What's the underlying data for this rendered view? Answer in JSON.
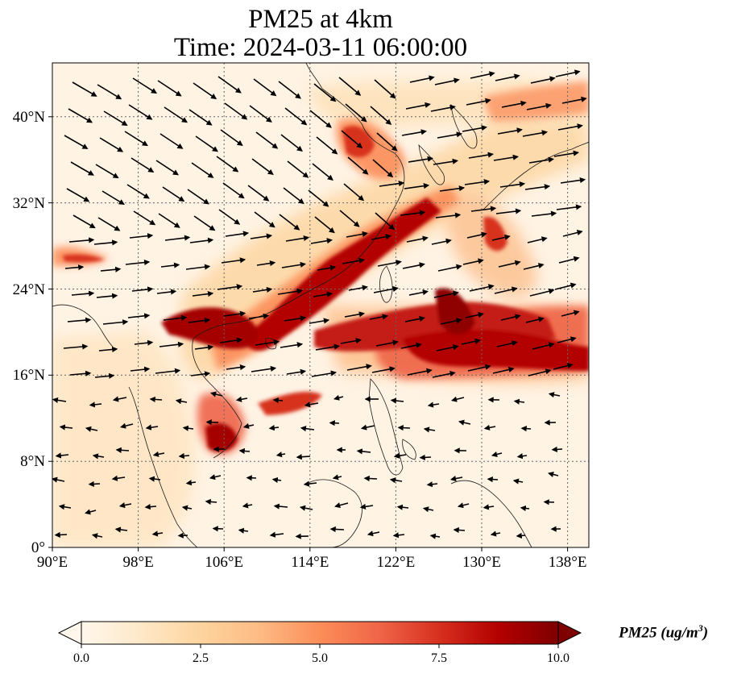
{
  "title": {
    "line1": "PM25 at 4km",
    "line2": "Time: 2024-03-11 06:00:00"
  },
  "map": {
    "lon_range": [
      90,
      140
    ],
    "lat_range": [
      0,
      45
    ],
    "x_ticks": [
      "90°E",
      "98°E",
      "106°E",
      "114°E",
      "122°E",
      "130°E",
      "138°E"
    ],
    "y_ticks": [
      "0°",
      "8°N",
      "16°N",
      "24°N",
      "32°N",
      "40°N"
    ],
    "gridlines": true,
    "coastlines": true,
    "wind_vectors": true
  },
  "colorbar": {
    "colormap": "OrRd",
    "colors": [
      "#fff7ec",
      "#fee8c8",
      "#fdd49e",
      "#fdbb84",
      "#fc8d59",
      "#ef6548",
      "#d7301f",
      "#b30000",
      "#7f0000"
    ],
    "min": 0.0,
    "max": 10.0,
    "extend": "both",
    "ticks": [
      "0.0",
      "2.5",
      "5.0",
      "7.5",
      "10.0"
    ],
    "label_main": "PM25 (ug/m",
    "label_sup": "3",
    "label_end": ")"
  }
}
